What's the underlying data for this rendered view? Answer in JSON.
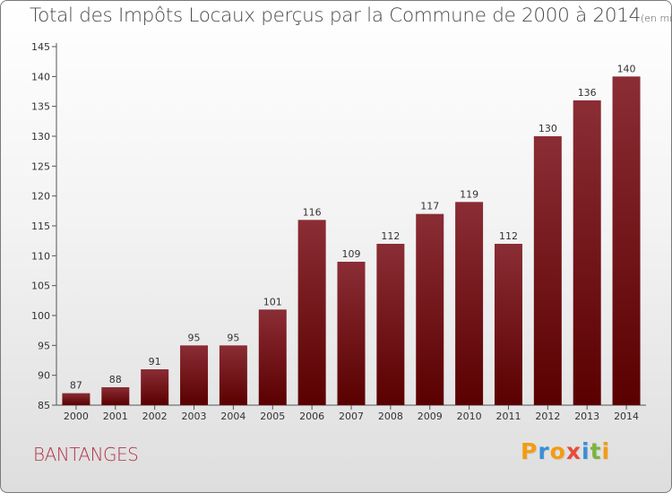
{
  "title": "Total des Impôts Locaux perçus par la Commune de 2000 à 2014",
  "unit_note": "(en milliers d'€)",
  "commune": "BANTANGES",
  "logo": {
    "letters": [
      "P",
      "r",
      "o",
      "x",
      "i",
      "t",
      "i"
    ],
    "colors": [
      "#f39c12",
      "#3a8fd6",
      "#f39c12",
      "#e74c3c",
      "#3a8fd6",
      "#7cb342",
      "#f39c12"
    ]
  },
  "chart_data": {
    "type": "bar",
    "title": "Total des Impôts Locaux perçus par la Commune de 2000 à 2014",
    "subtitle": "(en milliers d'€)",
    "xlabel": "",
    "ylabel": "",
    "ylim": [
      85,
      145
    ],
    "yticks": [
      85,
      90,
      95,
      100,
      105,
      110,
      115,
      120,
      125,
      130,
      135,
      140,
      145
    ],
    "categories": [
      "2000",
      "2001",
      "2002",
      "2003",
      "2004",
      "2005",
      "2006",
      "2007",
      "2008",
      "2009",
      "2010",
      "2011",
      "2012",
      "2013",
      "2014"
    ],
    "values": [
      87,
      88,
      91,
      95,
      95,
      101,
      116,
      109,
      112,
      117,
      119,
      112,
      130,
      136,
      140
    ],
    "bar_color_top": "#8b2d35",
    "bar_color_bottom": "#5a0000",
    "grid": false
  }
}
